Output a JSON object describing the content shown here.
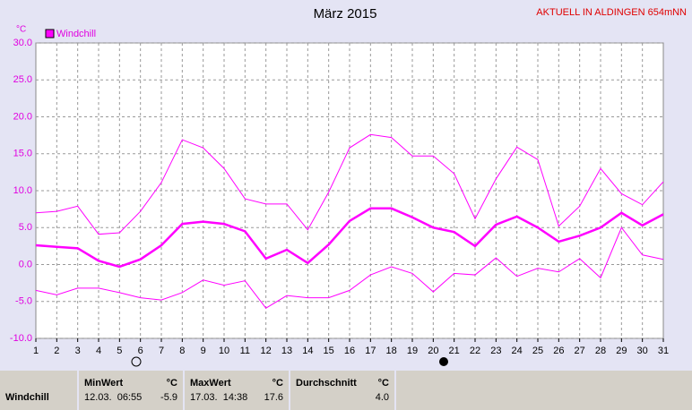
{
  "chart_data": {
    "type": "line",
    "title": "März 2015",
    "subtitle": "AKTUELL IN ALDINGEN 654mNN",
    "y_unit": "°C",
    "legend": {
      "name": "Windchill",
      "color": "#ff00ff"
    },
    "categories": [
      "1",
      "2",
      "3",
      "4",
      "5",
      "6",
      "7",
      "8",
      "9",
      "10",
      "11",
      "12",
      "13",
      "14",
      "15",
      "16",
      "17",
      "18",
      "19",
      "20",
      "21",
      "22",
      "23",
      "24",
      "25",
      "26",
      "27",
      "28",
      "29",
      "30",
      "31"
    ],
    "series": [
      {
        "color": "#ff00ff",
        "width": 1,
        "values": [
          7.0,
          7.2,
          7.9,
          4.1,
          4.3,
          7.2,
          11.1,
          16.9,
          15.8,
          13.0,
          8.9,
          8.2,
          8.2,
          4.7,
          9.8,
          15.8,
          17.6,
          17.2,
          14.7,
          14.7,
          12.3,
          6.2,
          11.6,
          15.9,
          14.2,
          5.2,
          7.9,
          13.0,
          9.6,
          8.1,
          11.2
        ]
      },
      {
        "color": "#ff00ff",
        "width": 2.5,
        "values": [
          2.6,
          2.4,
          2.2,
          0.5,
          -0.3,
          0.7,
          2.6,
          5.5,
          5.8,
          5.5,
          4.5,
          0.8,
          2.0,
          0.2,
          2.7,
          5.9,
          7.6,
          7.6,
          6.4,
          5.0,
          4.4,
          2.5,
          5.4,
          6.5,
          5.0,
          3.1,
          3.9,
          5.0,
          7.0,
          5.3,
          6.8
        ]
      },
      {
        "color": "#ff00ff",
        "width": 1,
        "values": [
          -3.5,
          -4.1,
          -3.2,
          -3.2,
          -3.8,
          -4.5,
          -4.8,
          -3.8,
          -2.1,
          -2.8,
          -2.2,
          -5.9,
          -4.2,
          -4.5,
          -4.5,
          -3.5,
          -1.4,
          -0.3,
          -1.2,
          -3.7,
          -1.2,
          -1.4,
          0.9,
          -1.6,
          -0.5,
          -1.0,
          0.8,
          -1.8,
          5.0,
          1.3,
          0.7
        ]
      }
    ],
    "ylim": [
      -10,
      30
    ],
    "yticks": [
      {
        "value": -10,
        "label": "-10.0"
      },
      {
        "value": -5,
        "label": "-5.0"
      },
      {
        "value": 0,
        "label": "0.0"
      },
      {
        "value": 5,
        "label": "5.0"
      },
      {
        "value": 10,
        "label": "10.0"
      },
      {
        "value": 15,
        "label": "15.0"
      },
      {
        "value": 20,
        "label": "20.0"
      },
      {
        "value": 25,
        "label": "25.0"
      },
      {
        "value": 30,
        "label": "30.0"
      }
    ],
    "grid": true
  },
  "table": {
    "label": "Windchill",
    "columns": [
      {
        "title": "MinWert",
        "unit": "°C",
        "date": "12.03.  06:55",
        "value": "-5.9"
      },
      {
        "title": "MaxWert",
        "unit": "°C",
        "date": "17.03.  14:38",
        "value": "17.6"
      },
      {
        "title": "Durchschnitt",
        "unit": "°C",
        "value": "4.0"
      }
    ]
  }
}
